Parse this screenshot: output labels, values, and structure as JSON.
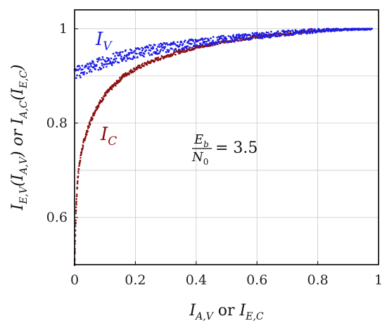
{
  "chart_data": {
    "type": "scatter",
    "title": "",
    "xlabel": {
      "main": "I",
      "sub1": "A,V",
      "mid": " or ",
      "main2": "I",
      "sub2": "E,C"
    },
    "ylabel": {
      "p1": "I",
      "s1": "E,V",
      "p2": "(I",
      "s2": "A,V",
      "p3": ")  or  I",
      "s3": "A,C",
      "p4": "(I",
      "s4": "E,C",
      "p5": ")"
    },
    "xlim": [
      0,
      1
    ],
    "ylim": [
      0.5,
      1.04
    ],
    "xticks": [
      0,
      0.2,
      0.4,
      0.6,
      0.8,
      1
    ],
    "xtick_labels": [
      "0",
      "0.2",
      "0.4",
      "0.6",
      "0.8",
      "1"
    ],
    "yticks": [
      0.6,
      0.8,
      1
    ],
    "ytick_labels": [
      "0.6",
      "0.8",
      "1"
    ],
    "grid": true,
    "annotation": {
      "num_main": "E",
      "num_sub": "b",
      "den_main": "N",
      "den_sub": "0",
      "rhs": "= 3.5"
    },
    "colors": {
      "I_V": "#1f1fe6",
      "I_C": "#8b1010"
    },
    "series": [
      {
        "name": "I_V",
        "label_main": "I",
        "label_sub": "V",
        "x": [
          0.0,
          0.01,
          0.02,
          0.03,
          0.05,
          0.07,
          0.1,
          0.13,
          0.16,
          0.2,
          0.25,
          0.3,
          0.35,
          0.4,
          0.45,
          0.5,
          0.55,
          0.6,
          0.65,
          0.7,
          0.75,
          0.8,
          0.85,
          0.9,
          0.95,
          0.98
        ],
        "y": [
          0.905,
          0.908,
          0.91,
          0.913,
          0.918,
          0.923,
          0.93,
          0.936,
          0.942,
          0.948,
          0.955,
          0.96,
          0.965,
          0.97,
          0.974,
          0.978,
          0.982,
          0.985,
          0.988,
          0.991,
          0.994,
          0.996,
          0.998,
          0.999,
          1.0,
          1.0
        ]
      },
      {
        "name": "I_C",
        "label_main": "I",
        "label_sub": "C",
        "x": [
          0.0,
          0.002,
          0.005,
          0.01,
          0.015,
          0.02,
          0.03,
          0.04,
          0.05,
          0.07,
          0.1,
          0.13,
          0.16,
          0.2,
          0.25,
          0.3,
          0.35,
          0.4,
          0.45,
          0.5,
          0.55,
          0.6,
          0.65,
          0.7,
          0.75,
          0.8,
          0.85,
          0.9,
          0.95
        ],
        "y": [
          0.5,
          0.56,
          0.62,
          0.68,
          0.71,
          0.73,
          0.76,
          0.78,
          0.8,
          0.83,
          0.86,
          0.88,
          0.9,
          0.915,
          0.93,
          0.942,
          0.952,
          0.96,
          0.967,
          0.973,
          0.978,
          0.983,
          0.987,
          0.99,
          0.993,
          0.995,
          0.997,
          0.999,
          1.0
        ]
      }
    ]
  }
}
